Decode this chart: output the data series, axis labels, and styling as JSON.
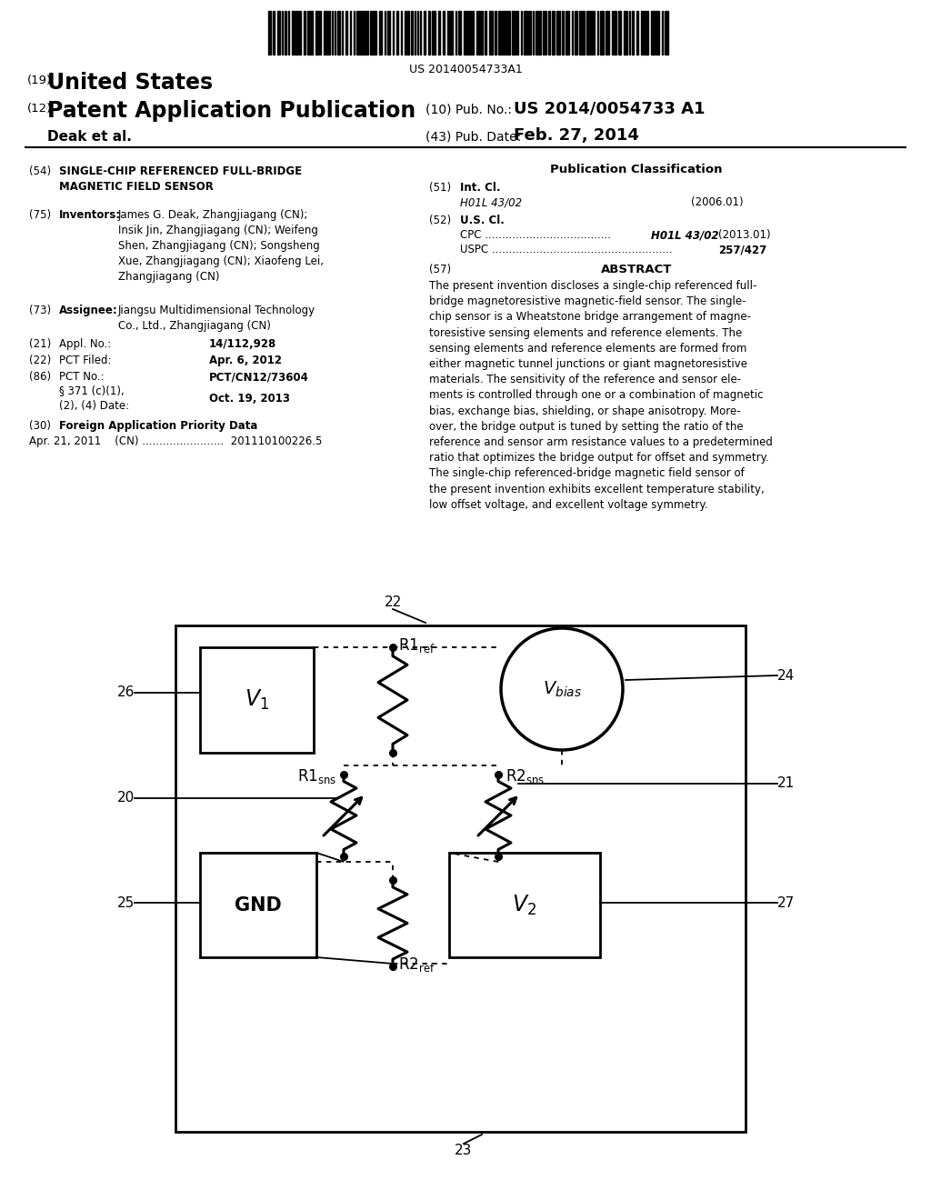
{
  "bg_color": "#ffffff",
  "barcode_text": "US 20140054733A1",
  "title_19": "(19)",
  "title_united_states": "United States",
  "title_12": "(12)",
  "title_patent": "Patent Application Publication",
  "pub_no_label": "(10) Pub. No.:",
  "pub_no_value": "US 2014/0054733 A1",
  "inventors_label": "Deak et al.",
  "pub_date_label": "(43) Pub. Date:",
  "pub_date_value": "Feb. 27, 2014",
  "section_54_label": "(54)",
  "section_54_title": "SINGLE-CHIP REFERENCED FULL-BRIDGE\nMAGNETIC FIELD SENSOR",
  "section_75_label": "(75)",
  "section_75_title": "Inventors:",
  "section_75_text": "James G. Deak, Zhangjiagang (CN);\nInsik Jin, Zhangjiagang (CN); Weifeng\nShen, Zhangjiagang (CN); Songsheng\nXue, Zhangjiagang (CN); Xiaofeng Lei,\nZhangjiagang (CN)",
  "section_73_label": "(73)",
  "section_73_title": "Assignee:",
  "section_73_text": "Jiangsu Multidimensional Technology\nCo., Ltd., Zhangjiagang (CN)",
  "section_21_label": "(21)",
  "section_21_title": "Appl. No.:",
  "section_21_value": "14/112,928",
  "section_22_label": "(22)",
  "section_22_title": "PCT Filed:",
  "section_22_value": "Apr. 6, 2012",
  "section_86_label": "(86)",
  "section_86_title": "PCT No.:",
  "section_86_value": "PCT/CN12/73604",
  "section_86b_text": "§ 371 (c)(1),\n(2), (4) Date:",
  "section_86b_value": "Oct. 19, 2013",
  "section_30_label": "(30)",
  "section_30_title": "Foreign Application Priority Data",
  "section_30_text": "Apr. 21, 2011    (CN) ........................  201110100226.5",
  "pub_class_title": "Publication Classification",
  "section_51_label": "(51)",
  "section_51_title": "Int. Cl.",
  "section_51_class": "H01L 43/02",
  "section_51_year": "(2006.01)",
  "section_52_label": "(52)",
  "section_52_title": "U.S. Cl.",
  "section_52_cpc_dots": "CPC .....................................",
  "section_52_cpc_val": "H01L 43/02",
  "section_52_cpc_year": "(2013.01)",
  "section_52_uspc_dots": "USPC .....................................................",
  "section_52_uspc_val": "257/427",
  "section_57_label": "(57)",
  "section_57_title": "ABSTRACT",
  "abstract_text": "The present invention discloses a single-chip referenced full-\nbridge magnetoresistive magnetic-field sensor. The single-\nchip sensor is a Wheatstone bridge arrangement of magne-\ntoresistive sensing elements and reference elements. The\nsensing elements and reference elements are formed from\neither magnetic tunnel junctions or giant magnetoresistive\nmaterials. The sensitivity of the reference and sensor ele-\nments is controlled through one or a combination of magnetic\nbias, exchange bias, shielding, or shape anisotropy. More-\nover, the bridge output is tuned by setting the ratio of the\nreference and sensor arm resistance values to a predetermined\nratio that optimizes the bridge output for offset and symmetry.\nThe single-chip referenced-bridge magnetic field sensor of\nthe present invention exhibits excellent temperature stability,\nlow offset voltage, and excellent voltage symmetry."
}
